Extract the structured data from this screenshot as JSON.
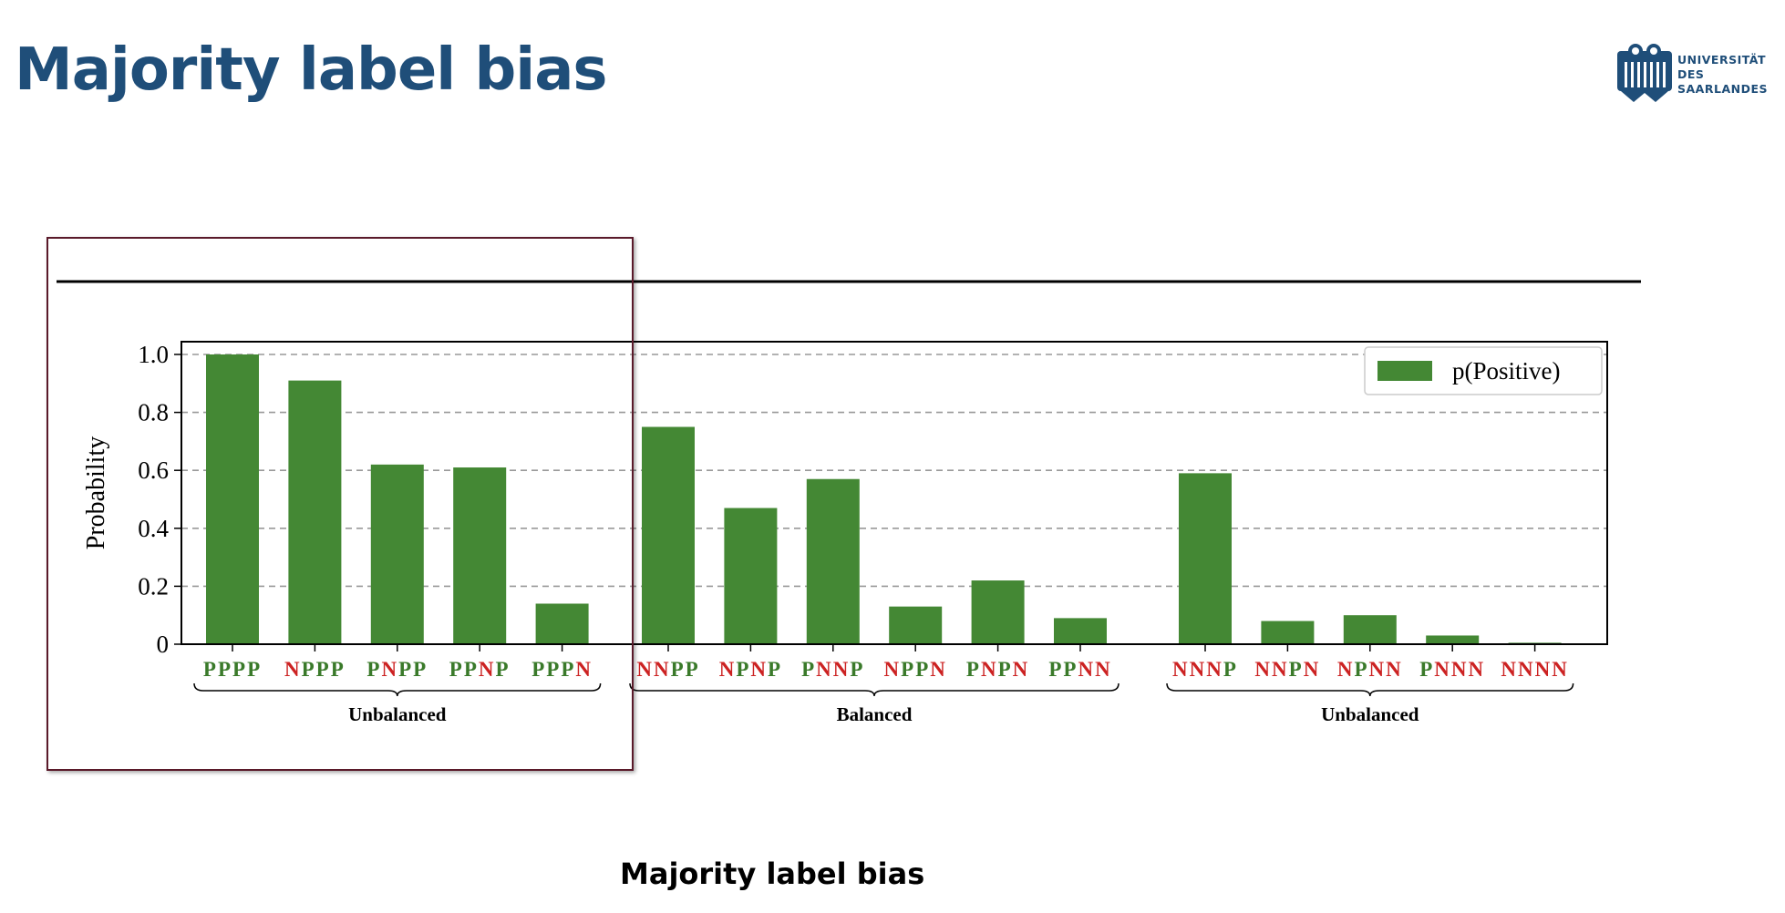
{
  "slide": {
    "title": "Majority label bias",
    "caption": "Majority label bias",
    "logo": {
      "lines": [
        "UNIVERSITÄT",
        "DES",
        "SAARLANDES"
      ]
    }
  },
  "colors": {
    "title": "#1f4e79",
    "bar": "#448834",
    "positive_label": "#3a7a2a",
    "negative_label": "#cc2222",
    "highlight_box": "#5a1a2a"
  },
  "chart_data": {
    "type": "bar",
    "ylabel": "Probability",
    "ylim": [
      0,
      1.0
    ],
    "yticks": [
      "0",
      "0.2",
      "0.4",
      "0.6",
      "0.8",
      "1.0"
    ],
    "grid": "horizontal dashed",
    "legend": {
      "position": "top-right",
      "entries": [
        "p(Positive)"
      ]
    },
    "series": [
      {
        "name": "p(Positive)",
        "values": [
          1.0,
          0.91,
          0.62,
          0.61,
          0.14,
          0.75,
          0.47,
          0.57,
          0.13,
          0.22,
          0.09,
          0.59,
          0.08,
          0.1,
          0.03,
          0.005
        ]
      }
    ],
    "categories": [
      "PPPP",
      "NPPP",
      "PNPP",
      "PPNP",
      "PPPN",
      "NNPP",
      "NPNP",
      "PNNP",
      "NPPN",
      "PNPN",
      "PPNN",
      "NNNP",
      "NNPN",
      "NPNN",
      "PNNN",
      "NNNN"
    ],
    "groups": [
      {
        "label": "Unbalanced",
        "start": 0,
        "end": 4
      },
      {
        "label": "Balanced",
        "start": 5,
        "end": 10
      },
      {
        "label": "Unbalanced",
        "start": 11,
        "end": 15
      }
    ]
  }
}
